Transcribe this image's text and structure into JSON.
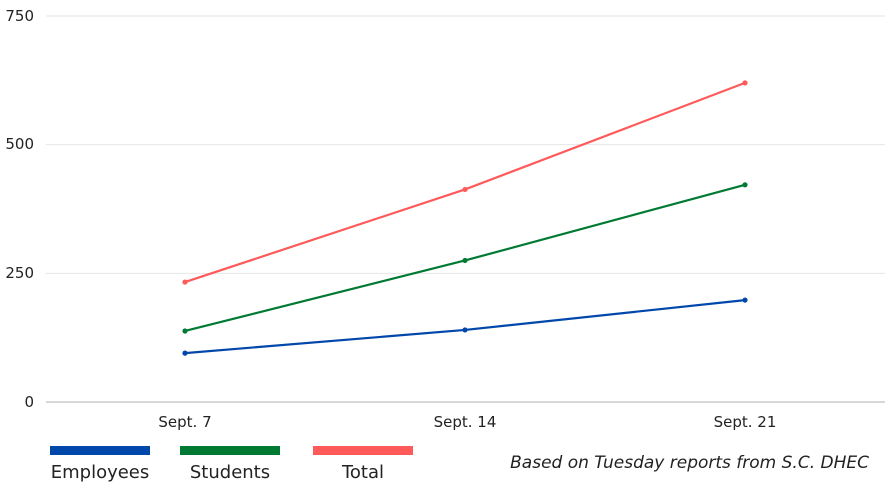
{
  "chart_data": {
    "type": "line",
    "title": "",
    "xlabel": "",
    "ylabel": "",
    "categories": [
      "Sept. 7",
      "Sept. 14",
      "Sept. 21"
    ],
    "series": [
      {
        "name": "Employees",
        "color": "#0047AB",
        "values": [
          95,
          140,
          198
        ]
      },
      {
        "name": "Students",
        "color": "#007A33",
        "values": [
          138,
          275,
          422
        ]
      },
      {
        "name": "Total",
        "color": "#FF5A5A",
        "values": [
          233,
          413,
          620
        ]
      }
    ],
    "ylim": [
      0,
      750
    ],
    "yticks": [
      0,
      250,
      500,
      750
    ],
    "grid": true,
    "legend_position": "bottom-left",
    "annotation": "Based on Tuesday reports from S.C. DHEC"
  },
  "yaxis": {
    "ticks": [
      "750",
      "500",
      "250",
      "0"
    ]
  },
  "xaxis": {
    "ticks": [
      "Sept. 7",
      "Sept. 14",
      "Sept. 21"
    ]
  },
  "legend": {
    "items": [
      {
        "label": "Employees",
        "color": "#0047AB"
      },
      {
        "label": "Students",
        "color": "#007A33"
      },
      {
        "label": "Total",
        "color": "#FF5A5A"
      }
    ]
  },
  "source_note": "Based on Tuesday reports from S.C. DHEC"
}
